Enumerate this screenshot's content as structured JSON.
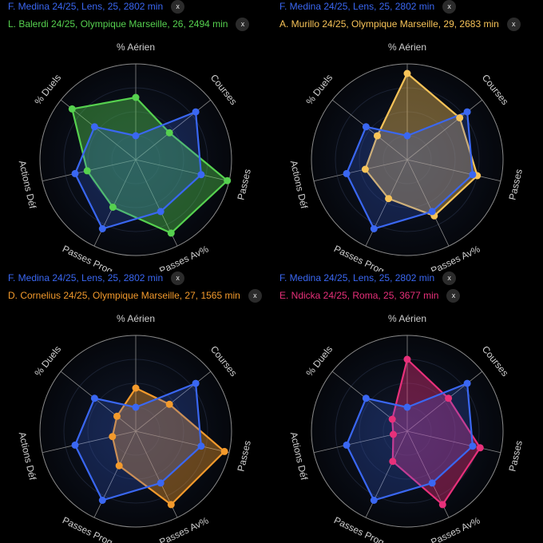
{
  "axes": [
    "% Aérien",
    "Courses",
    "Passes",
    "Passes Av%",
    "Passes Prog",
    "Actions Déf",
    "% Duels"
  ],
  "colors": {
    "background": "#000000",
    "grid": "#8a8a8a",
    "reference": "#3a67f2"
  },
  "close_label": "x",
  "chart_data": [
    {
      "type": "radar",
      "axes": [
        "% Aérien",
        "Courses",
        "Passes",
        "Passes Av%",
        "Passes Prog",
        "Actions Déf",
        "% Duels"
      ],
      "rmax": 1,
      "grid": true,
      "legend_position": "top-left",
      "series": [
        {
          "name": "F. Medina 24/25, Lens, 25, 2802 min",
          "color": "#3a67f2",
          "values": [
            0.25,
            0.8,
            0.7,
            0.6,
            0.8,
            0.65,
            0.55
          ]
        },
        {
          "name": "L. Balerdi 24/25, Olympique Marseille, 26, 2494 min",
          "color": "#56d14f",
          "values": [
            0.65,
            0.45,
            0.98,
            0.85,
            0.55,
            0.52,
            0.85
          ]
        }
      ]
    },
    {
      "type": "radar",
      "axes": [
        "% Aérien",
        "Courses",
        "Passes",
        "Passes Av%",
        "Passes Prog",
        "Actions Déf",
        "% Duels"
      ],
      "rmax": 1,
      "grid": true,
      "legend_position": "top-left",
      "series": [
        {
          "name": "F. Medina 24/25, Lens, 25, 2802 min",
          "color": "#3a67f2",
          "values": [
            0.25,
            0.8,
            0.7,
            0.6,
            0.8,
            0.65,
            0.55
          ]
        },
        {
          "name": "A. Murillo 24/25, Olympique Marseille, 29, 2683 min",
          "color": "#f7c358",
          "values": [
            0.9,
            0.7,
            0.75,
            0.65,
            0.45,
            0.45,
            0.4
          ]
        }
      ]
    },
    {
      "type": "radar",
      "axes": [
        "% Aérien",
        "Courses",
        "Passes",
        "Passes Av%",
        "Passes Prog",
        "Actions Déf",
        "% Duels"
      ],
      "rmax": 1,
      "grid": true,
      "legend_position": "top-left",
      "series": [
        {
          "name": "F. Medina 24/25, Lens, 25, 2802 min",
          "color": "#3a67f2",
          "values": [
            0.25,
            0.8,
            0.7,
            0.6,
            0.8,
            0.65,
            0.55
          ]
        },
        {
          "name": "D. Cornelius 24/25, Olympique Marseille, 27, 1565 min",
          "color": "#f39a2c",
          "values": [
            0.45,
            0.45,
            0.95,
            0.85,
            0.4,
            0.25,
            0.25
          ]
        }
      ]
    },
    {
      "type": "radar",
      "axes": [
        "% Aérien",
        "Courses",
        "Passes",
        "Passes Av%",
        "Passes Prog",
        "Actions Déf",
        "% Duels"
      ],
      "rmax": 1,
      "grid": true,
      "legend_position": "top-left",
      "series": [
        {
          "name": "F. Medina 24/25, Lens, 25, 2802 min",
          "color": "#3a67f2",
          "values": [
            0.25,
            0.8,
            0.7,
            0.6,
            0.8,
            0.65,
            0.55
          ]
        },
        {
          "name": "E. Ndicka 24/25, Roma, 25, 3677 min",
          "color": "#e8307a",
          "values": [
            0.75,
            0.55,
            0.78,
            0.85,
            0.35,
            0.15,
            0.2
          ]
        }
      ]
    }
  ]
}
